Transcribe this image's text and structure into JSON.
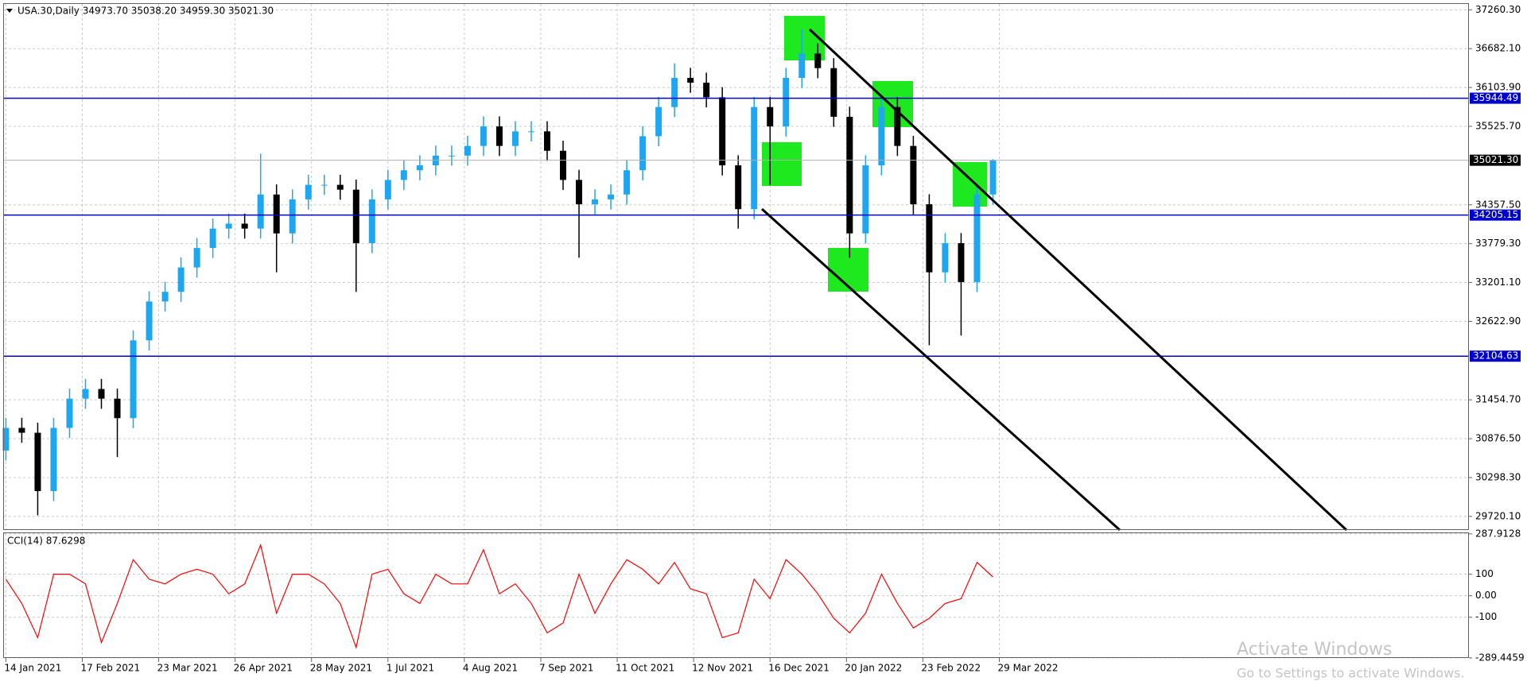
{
  "chart_data": [
    {
      "type": "candlestick",
      "title": "USA.30,Daily  34973.70 35038.20 34959.30 35021.30",
      "up_color": "#1ea7f0",
      "down_color": "#000000",
      "grid": true,
      "xlim": [
        -0.12,
        91.9
      ],
      "xticks": [
        {
          "value": 0,
          "label": "14 Jan 2021"
        },
        {
          "value": 4.8,
          "label": "17 Feb 2021"
        },
        {
          "value": 9.6,
          "label": "23 Mar 2021"
        },
        {
          "value": 14.4,
          "label": "26 Apr 2021"
        },
        {
          "value": 19.2,
          "label": "28 May 2021"
        },
        {
          "value": 24,
          "label": "1 Jul 2021"
        },
        {
          "value": 28.8,
          "label": "4 Aug 2021"
        },
        {
          "value": 33.6,
          "label": "7 Sep 2021"
        },
        {
          "value": 38.4,
          "label": "11 Oct 2021"
        },
        {
          "value": 43.2,
          "label": "12 Nov 2021"
        },
        {
          "value": 48,
          "label": "16 Dec 2021"
        },
        {
          "value": 52.8,
          "label": "20 Jan 2022"
        },
        {
          "value": 57.6,
          "label": "23 Feb 2022"
        },
        {
          "value": 62.4,
          "label": "29 Mar 2022"
        }
      ],
      "ylim": [
        29517,
        37347
      ],
      "yticks": [
        {
          "value": 37260.3,
          "label": "37260.30"
        },
        {
          "value": 36682.1,
          "label": "36682.10"
        },
        {
          "value": 36103.9,
          "label": "36103.90"
        },
        {
          "value": 35525.7,
          "label": "35525.70"
        },
        {
          "value": 34357.5,
          "label": "34357.50"
        },
        {
          "value": 33779.3,
          "label": "33779.30"
        },
        {
          "value": 33201.1,
          "label": "33201.10"
        },
        {
          "value": 32622.9,
          "label": "32622.90"
        },
        {
          "value": 31454.7,
          "label": "31454.70"
        },
        {
          "value": 30876.5,
          "label": "30876.50"
        },
        {
          "value": 30298.3,
          "label": "30298.30"
        },
        {
          "value": 29720.1,
          "label": "29720.10"
        }
      ],
      "levels": [
        35944.49,
        34205.15,
        32104.63
      ],
      "level_color": "#0000cc",
      "current_price": {
        "value": 35021.3,
        "label": "35021.30"
      },
      "candles": {
        "open": [
          30700,
          31037,
          30965,
          30097,
          31037,
          31472,
          31616,
          31472,
          31182,
          32340,
          32919,
          33063,
          33425,
          33715,
          34004,
          34077,
          34004,
          34511,
          33932,
          34438,
          34655,
          34655,
          34583,
          33787,
          34438,
          34728,
          34872,
          34945,
          35090,
          35090,
          35234,
          35524,
          35234,
          35451,
          35451,
          35162,
          34728,
          34366,
          34438,
          34511,
          34872,
          35379,
          35813,
          36247,
          36175,
          35958,
          34945,
          34293,
          35813,
          35524,
          36247,
          36609,
          36392,
          35668,
          33932,
          34945,
          35813,
          35234,
          34366,
          33353,
          33787,
          33208,
          34511
        ],
        "high": [
          31187,
          31187,
          31115,
          31187,
          31622,
          31766,
          31766,
          31622,
          32490,
          33069,
          33213,
          33575,
          33865,
          34154,
          34227,
          34227,
          35118,
          34661,
          34588,
          34805,
          34805,
          34805,
          34733,
          34588,
          34878,
          35022,
          35095,
          35240,
          35240,
          35384,
          35674,
          35674,
          35601,
          35601,
          35601,
          35312,
          34878,
          34588,
          34661,
          35022,
          35529,
          35963,
          36464,
          36397,
          36325,
          36108,
          35095,
          35963,
          35963,
          36397,
          36971,
          36759,
          36542,
          35818,
          35095,
          35958,
          35963,
          35384,
          34516,
          33937,
          33937,
          34661,
          35038.2
        ],
        "low": [
          30550,
          30815,
          29735,
          29947,
          30887,
          31322,
          31322,
          30603,
          31032,
          32190,
          32769,
          32913,
          33275,
          33565,
          33854,
          33854,
          33854,
          33353,
          33782,
          34288,
          34505,
          34433,
          33063,
          33637,
          34288,
          34578,
          34722,
          34795,
          34940,
          34940,
          35084,
          35084,
          35084,
          35301,
          35012,
          34578,
          33570,
          34216,
          34288,
          34361,
          34722,
          35229,
          35663,
          36025,
          35808,
          34795,
          34004,
          34143,
          34655,
          35374,
          36097,
          36242,
          35518,
          33570,
          33782,
          34795,
          35084,
          34216,
          32267,
          33203,
          32412,
          33058,
          34361
        ],
        "close": [
          31037,
          30965,
          30097,
          31037,
          31472,
          31616,
          31472,
          31182,
          32340,
          32919,
          33063,
          33425,
          33715,
          34004,
          34077,
          34004,
          34511,
          33932,
          34438,
          34655,
          34655,
          34583,
          33787,
          34438,
          34728,
          34872,
          34945,
          35090,
          35090,
          35234,
          35524,
          35234,
          35451,
          35451,
          35162,
          34728,
          34366,
          34438,
          34511,
          34872,
          35379,
          35813,
          36247,
          36175,
          35958,
          34945,
          34293,
          35813,
          35524,
          36247,
          36609,
          36392,
          35668,
          33932,
          34945,
          35813,
          35234,
          34366,
          33353,
          33787,
          33208,
          34511,
          35021.3
        ]
      }
    },
    {
      "type": "line",
      "title": "CCI(14) 87.6298",
      "color": "#ff0000",
      "ylim": [
        -286,
        291
      ],
      "yticks": [
        287.9128,
        100,
        {
          "value": 0,
          "label": "0.00"
        },
        -100,
        -289.4459
      ],
      "values": [
        77,
        -36,
        -195,
        100,
        100,
        55,
        -218,
        -36,
        168,
        77,
        55,
        100,
        123,
        100,
        9,
        55,
        236,
        -82,
        100,
        100,
        55,
        -36,
        -241,
        100,
        123,
        9,
        -36,
        100,
        55,
        55,
        214,
        9,
        55,
        -36,
        -173,
        -127,
        100,
        -82,
        55,
        168,
        123,
        55,
        155,
        32,
        9,
        -195,
        -173,
        77,
        -14,
        168,
        100,
        9,
        -105,
        -173,
        -82,
        100,
        -36,
        -150,
        -105,
        -36,
        -14,
        155,
        87.6298
      ]
    },
    {
      "type": "watermark",
      "line1": "Activate Windows",
      "line2": "Go to Settings to activate Windows."
    }
  ]
}
